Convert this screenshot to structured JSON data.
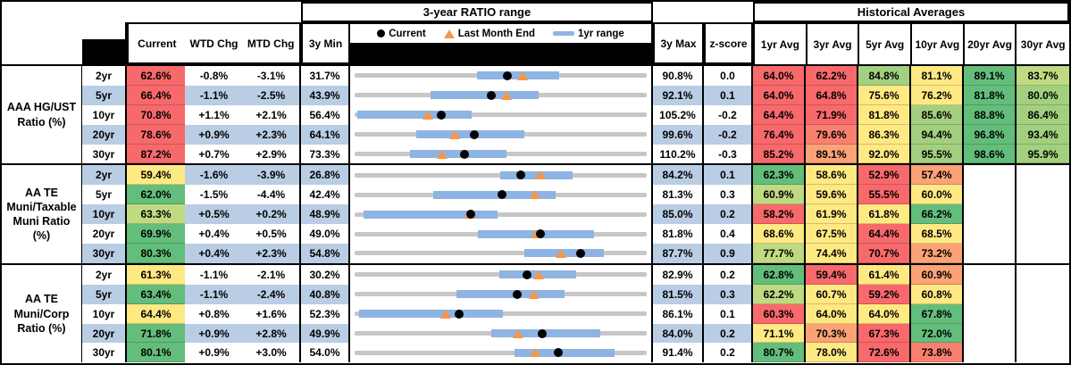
{
  "headers": {
    "range_banner": "3-year RATIO range",
    "hist_banner": "Historical Averages",
    "current": "Current",
    "wtd": "WTD Chg",
    "mtd": "MTD Chg",
    "min3y": "3y Min",
    "max3y": "3y Max",
    "zscore": "z-score",
    "avgs": [
      "1yr Avg",
      "3yr Avg",
      "5yr Avg",
      "10yr Avg",
      "20yr Avg",
      "30yr Avg"
    ]
  },
  "legend": [
    {
      "marker": "dot",
      "label": "Current"
    },
    {
      "marker": "triangle",
      "label": "Last Month End"
    },
    {
      "marker": "bar",
      "label": "1yr range"
    }
  ],
  "palette": {
    "red": "#F8696B",
    "salmon": "#F9806F",
    "orange": "#FBA376",
    "yellow": "#FFE983",
    "yellowgreen": "#BFDA81",
    "lightgreen": "#A2D07F",
    "green": "#63BE7B",
    "row_band": "#B9CDE4",
    "track_gray": "#C6C6C6",
    "range_bar_blue": "#8DB4E2",
    "triangle_orange": "#F79646",
    "dot_black": "#000000"
  },
  "groups": [
    {
      "label": "AAA HG/UST\nRatio (%)",
      "rows": [
        {
          "tenor": "2yr",
          "current": "62.6%",
          "current_color": "red",
          "wtd": "-0.8%",
          "mtd": "-3.1%",
          "min3y": "31.7%",
          "max3y": "90.8%",
          "z": "0.0",
          "avgs": [
            {
              "v": "64.0%",
              "c": "red"
            },
            {
              "v": "62.2%",
              "c": "red"
            },
            {
              "v": "84.8%",
              "c": "lightgreen"
            },
            {
              "v": "81.1%",
              "c": "yellow"
            },
            {
              "v": "89.1%",
              "c": "green"
            },
            {
              "v": "83.7%",
              "c": "yellowgreen"
            }
          ]
        },
        {
          "tenor": "5yr",
          "current": "66.4%",
          "current_color": "red",
          "wtd": "-1.1%",
          "mtd": "-2.5%",
          "min3y": "43.9%",
          "max3y": "92.1%",
          "z": "0.1",
          "avgs": [
            {
              "v": "64.0%",
              "c": "red"
            },
            {
              "v": "64.8%",
              "c": "red"
            },
            {
              "v": "75.6%",
              "c": "yellow"
            },
            {
              "v": "76.2%",
              "c": "yellow"
            },
            {
              "v": "81.8%",
              "c": "green"
            },
            {
              "v": "80.0%",
              "c": "lightgreen"
            }
          ]
        },
        {
          "tenor": "10yr",
          "current": "70.8%",
          "current_color": "red",
          "wtd": "+1.1%",
          "mtd": "+2.1%",
          "min3y": "56.4%",
          "max3y": "105.2%",
          "z": "-0.2",
          "avgs": [
            {
              "v": "64.4%",
              "c": "red"
            },
            {
              "v": "71.9%",
              "c": "red"
            },
            {
              "v": "81.8%",
              "c": "yellow"
            },
            {
              "v": "85.6%",
              "c": "lightgreen"
            },
            {
              "v": "88.8%",
              "c": "green"
            },
            {
              "v": "86.4%",
              "c": "lightgreen"
            }
          ]
        },
        {
          "tenor": "20yr",
          "current": "78.6%",
          "current_color": "red",
          "wtd": "+0.9%",
          "mtd": "+2.3%",
          "min3y": "64.1%",
          "max3y": "99.6%",
          "z": "-0.2",
          "avgs": [
            {
              "v": "76.4%",
              "c": "red"
            },
            {
              "v": "79.6%",
              "c": "salmon"
            },
            {
              "v": "86.3%",
              "c": "yellow"
            },
            {
              "v": "94.4%",
              "c": "lightgreen"
            },
            {
              "v": "96.8%",
              "c": "green"
            },
            {
              "v": "93.4%",
              "c": "lightgreen"
            }
          ]
        },
        {
          "tenor": "30yr",
          "current": "87.2%",
          "current_color": "red",
          "wtd": "+0.7%",
          "mtd": "+2.9%",
          "min3y": "73.3%",
          "max3y": "110.2%",
          "z": "-0.3",
          "avgs": [
            {
              "v": "85.2%",
              "c": "red"
            },
            {
              "v": "89.1%",
              "c": "orange"
            },
            {
              "v": "92.0%",
              "c": "yellow"
            },
            {
              "v": "95.5%",
              "c": "lightgreen"
            },
            {
              "v": "98.6%",
              "c": "green"
            },
            {
              "v": "95.9%",
              "c": "lightgreen"
            }
          ]
        }
      ]
    },
    {
      "label": "AA TE\nMuni/Taxable\nMuni Ratio\n(%)",
      "rows": [
        {
          "tenor": "2yr",
          "current": "59.4%",
          "current_color": "yellow",
          "wtd": "-1.6%",
          "mtd": "-3.9%",
          "min3y": "26.8%",
          "max3y": "84.2%",
          "z": "0.1",
          "avgs": [
            {
              "v": "62.3%",
              "c": "green"
            },
            {
              "v": "58.6%",
              "c": "yellow"
            },
            {
              "v": "52.9%",
              "c": "red"
            },
            {
              "v": "57.4%",
              "c": "orange"
            },
            {
              "v": "",
              "c": ""
            },
            {
              "v": "",
              "c": ""
            }
          ]
        },
        {
          "tenor": "5yr",
          "current": "62.0%",
          "current_color": "green",
          "wtd": "-1.5%",
          "mtd": "-4.4%",
          "min3y": "42.4%",
          "max3y": "81.3%",
          "z": "0.3",
          "avgs": [
            {
              "v": "60.9%",
              "c": "yellowgreen"
            },
            {
              "v": "59.6%",
              "c": "yellow"
            },
            {
              "v": "55.5%",
              "c": "red"
            },
            {
              "v": "60.0%",
              "c": "yellow"
            },
            {
              "v": "",
              "c": ""
            },
            {
              "v": "",
              "c": ""
            }
          ]
        },
        {
          "tenor": "10yr",
          "current": "63.3%",
          "current_color": "yellowgreen",
          "wtd": "+0.5%",
          "mtd": "+0.2%",
          "min3y": "48.9%",
          "max3y": "85.0%",
          "z": "0.2",
          "avgs": [
            {
              "v": "58.2%",
              "c": "red"
            },
            {
              "v": "61.9%",
              "c": "yellow"
            },
            {
              "v": "61.8%",
              "c": "yellow"
            },
            {
              "v": "66.2%",
              "c": "green"
            },
            {
              "v": "",
              "c": ""
            },
            {
              "v": "",
              "c": ""
            }
          ]
        },
        {
          "tenor": "20yr",
          "current": "69.9%",
          "current_color": "green",
          "wtd": "+0.4%",
          "mtd": "+0.5%",
          "min3y": "49.0%",
          "max3y": "81.8%",
          "z": "0.4",
          "avgs": [
            {
              "v": "68.6%",
              "c": "yellow"
            },
            {
              "v": "67.5%",
              "c": "yellow"
            },
            {
              "v": "64.4%",
              "c": "red"
            },
            {
              "v": "68.5%",
              "c": "yellow"
            },
            {
              "v": "",
              "c": ""
            },
            {
              "v": "",
              "c": ""
            }
          ]
        },
        {
          "tenor": "30yr",
          "current": "80.3%",
          "current_color": "green",
          "wtd": "+0.4%",
          "mtd": "+2.3%",
          "min3y": "54.8%",
          "max3y": "87.7%",
          "z": "0.9",
          "avgs": [
            {
              "v": "77.7%",
              "c": "yellowgreen"
            },
            {
              "v": "74.4%",
              "c": "yellow"
            },
            {
              "v": "70.7%",
              "c": "red"
            },
            {
              "v": "73.2%",
              "c": "orange"
            },
            {
              "v": "",
              "c": ""
            },
            {
              "v": "",
              "c": ""
            }
          ]
        }
      ]
    },
    {
      "label": "AA TE\nMuni/Corp\nRatio (%)",
      "rows": [
        {
          "tenor": "2yr",
          "current": "61.3%",
          "current_color": "yellow",
          "wtd": "-1.1%",
          "mtd": "-2.1%",
          "min3y": "30.2%",
          "max3y": "82.9%",
          "z": "0.2",
          "avgs": [
            {
              "v": "62.8%",
              "c": "green"
            },
            {
              "v": "59.4%",
              "c": "red"
            },
            {
              "v": "61.4%",
              "c": "yellow"
            },
            {
              "v": "60.9%",
              "c": "orange"
            },
            {
              "v": "",
              "c": ""
            },
            {
              "v": "",
              "c": ""
            }
          ]
        },
        {
          "tenor": "5yr",
          "current": "63.4%",
          "current_color": "green",
          "wtd": "-1.1%",
          "mtd": "-2.4%",
          "min3y": "40.8%",
          "max3y": "81.5%",
          "z": "0.3",
          "avgs": [
            {
              "v": "62.2%",
              "c": "yellowgreen"
            },
            {
              "v": "60.7%",
              "c": "yellow"
            },
            {
              "v": "59.2%",
              "c": "red"
            },
            {
              "v": "60.8%",
              "c": "yellow"
            },
            {
              "v": "",
              "c": ""
            },
            {
              "v": "",
              "c": ""
            }
          ]
        },
        {
          "tenor": "10yr",
          "current": "64.4%",
          "current_color": "yellow",
          "wtd": "+0.8%",
          "mtd": "+1.6%",
          "min3y": "52.3%",
          "max3y": "86.1%",
          "z": "0.1",
          "avgs": [
            {
              "v": "60.3%",
              "c": "red"
            },
            {
              "v": "64.0%",
              "c": "yellow"
            },
            {
              "v": "64.0%",
              "c": "yellow"
            },
            {
              "v": "67.8%",
              "c": "green"
            },
            {
              "v": "",
              "c": ""
            },
            {
              "v": "",
              "c": ""
            }
          ]
        },
        {
          "tenor": "20yr",
          "current": "71.8%",
          "current_color": "green",
          "wtd": "+0.9%",
          "mtd": "+2.8%",
          "min3y": "49.9%",
          "max3y": "84.0%",
          "z": "0.2",
          "avgs": [
            {
              "v": "71.1%",
              "c": "yellow"
            },
            {
              "v": "70.3%",
              "c": "orange"
            },
            {
              "v": "67.3%",
              "c": "red"
            },
            {
              "v": "72.0%",
              "c": "green"
            },
            {
              "v": "",
              "c": ""
            },
            {
              "v": "",
              "c": ""
            }
          ]
        },
        {
          "tenor": "30yr",
          "current": "80.1%",
          "current_color": "green",
          "wtd": "+0.9%",
          "mtd": "+3.0%",
          "min3y": "54.0%",
          "max3y": "91.4%",
          "z": "0.2",
          "avgs": [
            {
              "v": "80.7%",
              "c": "green"
            },
            {
              "v": "78.0%",
              "c": "yellow"
            },
            {
              "v": "72.6%",
              "c": "red"
            },
            {
              "v": "73.8%",
              "c": "salmon"
            },
            {
              "v": "",
              "c": ""
            },
            {
              "v": "",
              "c": ""
            }
          ]
        }
      ]
    }
  ],
  "chart_data": {
    "type": "range-dot",
    "title": "3-year RATIO range",
    "legend": [
      "Current",
      "Last Month End",
      "1yr range"
    ],
    "axis_note": "each row scaled from its own 3y Min to 3y Max",
    "series": [
      {
        "group": "AAA HG/UST Ratio (%)",
        "rows": [
          {
            "tenor": "2yr",
            "min3y": 31.7,
            "max3y": 90.8,
            "yr1_range": [
              56.5,
              73.1
            ],
            "current": 62.6,
            "last_month_end": 65.7
          },
          {
            "tenor": "5yr",
            "min3y": 43.9,
            "max3y": 92.1,
            "yr1_range": [
              56.4,
              74.3
            ],
            "current": 66.4,
            "last_month_end": 68.9
          },
          {
            "tenor": "10yr",
            "min3y": 56.4,
            "max3y": 105.2,
            "yr1_range": [
              56.9,
              76.0
            ],
            "current": 70.8,
            "last_month_end": 68.7
          },
          {
            "tenor": "20yr",
            "min3y": 64.1,
            "max3y": 99.6,
            "yr1_range": [
              71.6,
              84.7
            ],
            "current": 78.6,
            "last_month_end": 76.3
          },
          {
            "tenor": "30yr",
            "min3y": 73.3,
            "max3y": 110.2,
            "yr1_range": [
              80.3,
              92.5
            ],
            "current": 87.2,
            "last_month_end": 84.3
          }
        ]
      },
      {
        "group": "AA TE Muni/Taxable Muni Ratio (%)",
        "rows": [
          {
            "tenor": "2yr",
            "min3y": 26.8,
            "max3y": 84.2,
            "yr1_range": [
              55.4,
              69.7
            ],
            "current": 59.4,
            "last_month_end": 63.3
          },
          {
            "tenor": "5yr",
            "min3y": 42.4,
            "max3y": 81.3,
            "yr1_range": [
              52.9,
              69.2
            ],
            "current": 62.0,
            "last_month_end": 66.4
          },
          {
            "tenor": "10yr",
            "min3y": 48.9,
            "max3y": 85.0,
            "yr1_range": [
              50.0,
              66.6
            ],
            "current": 63.3,
            "last_month_end": 63.1
          },
          {
            "tenor": "20yr",
            "min3y": 49.0,
            "max3y": 81.8,
            "yr1_range": [
              62.8,
              75.9
            ],
            "current": 69.9,
            "last_month_end": 69.4
          },
          {
            "tenor": "30yr",
            "min3y": 54.8,
            "max3y": 87.7,
            "yr1_range": [
              73.9,
              82.9
            ],
            "current": 80.3,
            "last_month_end": 78.0
          }
        ]
      },
      {
        "group": "AA TE Muni/Corp Ratio (%)",
        "rows": [
          {
            "tenor": "2yr",
            "min3y": 30.2,
            "max3y": 82.9,
            "yr1_range": [
              56.3,
              70.1
            ],
            "current": 61.3,
            "last_month_end": 63.4
          },
          {
            "tenor": "5yr",
            "min3y": 40.8,
            "max3y": 81.5,
            "yr1_range": [
              55.0,
              70.1
            ],
            "current": 63.4,
            "last_month_end": 65.8
          },
          {
            "tenor": "10yr",
            "min3y": 52.3,
            "max3y": 86.1,
            "yr1_range": [
              52.8,
              69.5
            ],
            "current": 64.4,
            "last_month_end": 62.8
          },
          {
            "tenor": "20yr",
            "min3y": 49.9,
            "max3y": 84.0,
            "yr1_range": [
              65.9,
              78.6
            ],
            "current": 71.8,
            "last_month_end": 69.0
          },
          {
            "tenor": "30yr",
            "min3y": 54.0,
            "max3y": 91.4,
            "yr1_range": [
              74.5,
              87.3
            ],
            "current": 80.1,
            "last_month_end": 77.1
          }
        ]
      }
    ]
  }
}
